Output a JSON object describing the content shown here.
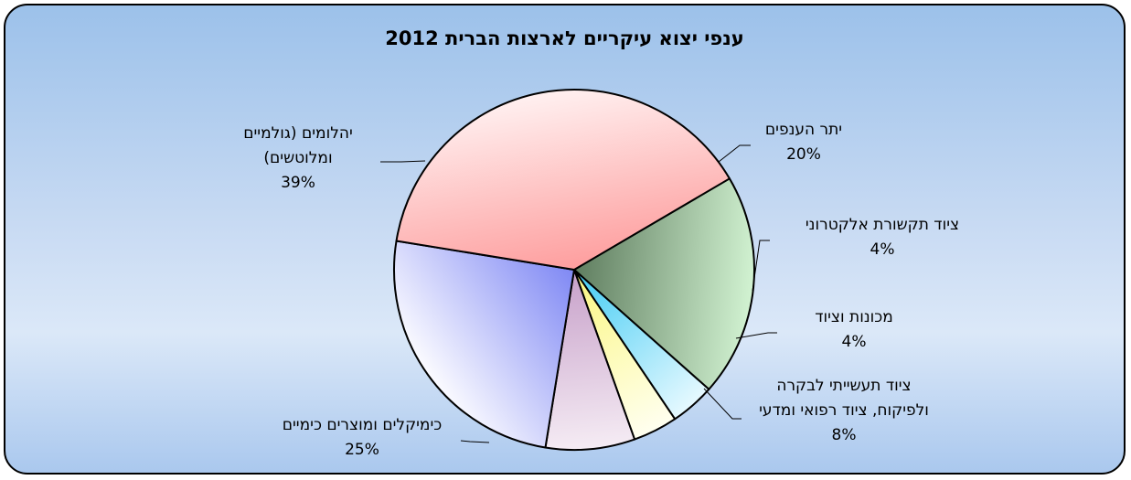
{
  "chart_data": {
    "type": "pie",
    "title": "ענפי יצוא עיקריים לארצות הברית 2012",
    "legend": "none",
    "slices": [
      {
        "label_lines": [
          "יתר הענפים"
        ],
        "value": 20,
        "value_label": "20%",
        "color_light": "#d2f3d2",
        "color_dark": "#5f7d5f"
      },
      {
        "label_lines": [
          "ציוד תקשורת אלקטרוני"
        ],
        "value": 4,
        "value_label": "4%",
        "color_light": "#e6f9ff",
        "color_dark": "#41cbf3"
      },
      {
        "label_lines": [
          "מכונות וציוד"
        ],
        "value": 4,
        "value_label": "4%",
        "color_light": "#fffff0",
        "color_dark": "#fbf77e"
      },
      {
        "label_lines": [
          "ציוד תעשייתי לבקרה",
          "ולפיקוח, ציוד רפואי ומדעי"
        ],
        "value": 8,
        "value_label": "8%",
        "color_light": "#f5ecf4",
        "color_dark": "#c7a0c9"
      },
      {
        "label_lines": [
          "כימיקלים ומוצרים כימיים"
        ],
        "value": 25,
        "value_label": "25%",
        "color_light": "#fbfbff",
        "color_dark": "#7f88f4"
      },
      {
        "label_lines": [
          "יהלומים (גולמיים",
          "ומלוטשים)"
        ],
        "value": 39,
        "value_label": "39%",
        "color_light": "#fff0f0",
        "color_dark": "#fe9e9e"
      }
    ]
  }
}
